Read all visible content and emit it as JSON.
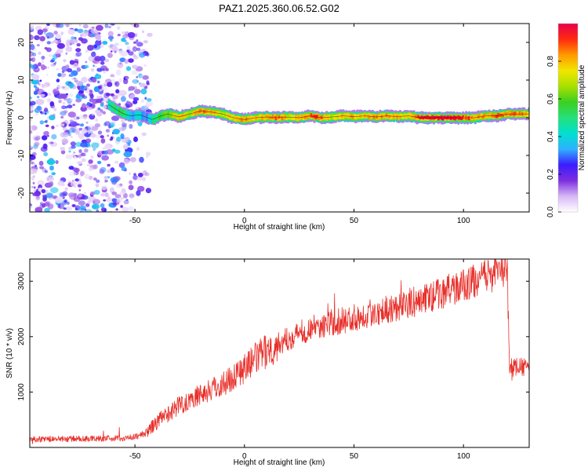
{
  "title": "PAZ1.2025.360.06.52.G02",
  "colors": {
    "line": "#e8302a",
    "ridge_dark": "#d9342b",
    "frame": "#000000",
    "background": "#ffffff"
  },
  "chart_data": [
    {
      "type": "heatmap",
      "name": "spectrogram",
      "xlabel": "Height of straight line (km)",
      "ylabel": "Frequency (Hz)",
      "xlim": [
        -98,
        130
      ],
      "ylim": [
        -25,
        25
      ],
      "xticks": [
        -50,
        0,
        50,
        100
      ],
      "yticks": [
        -20,
        -10,
        0,
        10,
        20
      ],
      "colorbar": {
        "label": "Normalized spectral amplitude",
        "range": [
          0.0,
          1.0
        ],
        "ticks": [
          0.0,
          0.2,
          0.4,
          0.6,
          0.8
        ],
        "tick_labels": [
          "0.0",
          "0.2",
          "0.4",
          "0.6",
          "0.8"
        ],
        "colormap": [
          "#ffffff",
          "#d7b8f5",
          "#7d2ee0",
          "#3b1cff",
          "#2fb0ff",
          "#00e0d0",
          "#26e07a",
          "#3cd020",
          "#a8e000",
          "#f2e600",
          "#ff9a00",
          "#ff2a10",
          "#e8004a"
        ]
      },
      "noise_region_x": [
        -98,
        -43
      ],
      "ridge": {
        "x_km": [
          -62,
          -58,
          -55,
          -52,
          -48,
          -45,
          -42,
          -38,
          -35,
          -30,
          -25,
          -20,
          -15,
          -10,
          -5,
          0,
          5,
          10,
          15,
          20,
          25,
          30,
          35,
          40,
          45,
          50,
          55,
          60,
          65,
          70,
          75,
          80,
          85,
          90,
          95,
          100,
          105,
          110,
          115,
          120,
          125,
          130
        ],
        "freq_hz": [
          3.5,
          2.0,
          1.0,
          0.5,
          0.8,
          0.2,
          -0.5,
          0.5,
          1.0,
          0.2,
          1.0,
          1.8,
          1.5,
          1.0,
          0.0,
          -0.5,
          0.0,
          0.2,
          0.0,
          0.2,
          0.0,
          0.5,
          0.0,
          0.2,
          0.5,
          0.3,
          0.5,
          0.2,
          0.5,
          0.3,
          0.5,
          0.0,
          0.0,
          0.0,
          0.0,
          0.0,
          0.0,
          0.5,
          0.5,
          1.0,
          1.0,
          1.0
        ],
        "amplitude": [
          0.45,
          0.5,
          0.55,
          0.35,
          0.4,
          0.3,
          0.45,
          0.55,
          0.6,
          0.8,
          0.7,
          0.85,
          0.8,
          0.7,
          0.75,
          0.85,
          0.75,
          0.8,
          0.85,
          0.75,
          0.8,
          0.85,
          0.9,
          0.7,
          0.8,
          0.8,
          0.75,
          0.85,
          0.8,
          0.8,
          0.75,
          0.95,
          1.0,
          1.0,
          1.0,
          0.9,
          0.85,
          0.8,
          0.9,
          0.85,
          0.85,
          0.8
        ]
      }
    },
    {
      "type": "line",
      "name": "snr",
      "xlabel": "Height of straight line (km)",
      "ylabel": "SNR (10 * v/v)",
      "xlim": [
        -98,
        130
      ],
      "ylim": [
        0,
        3400
      ],
      "xticks": [
        -50,
        0,
        50,
        100
      ],
      "yticks": [
        1000,
        2000,
        3000
      ],
      "series": [
        {
          "name": "SNR",
          "x": [
            -98,
            -90,
            -80,
            -70,
            -60,
            -55,
            -50,
            -45,
            -42,
            -40,
            -38,
            -35,
            -32,
            -30,
            -25,
            -20,
            -15,
            -10,
            -5,
            0,
            5,
            10,
            15,
            20,
            25,
            30,
            35,
            40,
            45,
            50,
            55,
            60,
            65,
            70,
            75,
            80,
            85,
            90,
            95,
            100,
            105,
            110,
            115,
            119,
            120,
            121,
            125,
            130
          ],
          "y": [
            150,
            150,
            155,
            160,
            165,
            170,
            190,
            260,
            380,
            450,
            520,
            600,
            700,
            760,
            860,
            960,
            1050,
            1150,
            1280,
            1430,
            1600,
            1740,
            1860,
            1960,
            2060,
            2140,
            2200,
            2240,
            2290,
            2340,
            2400,
            2450,
            2500,
            2550,
            2600,
            2650,
            2720,
            2790,
            2860,
            2920,
            3000,
            3080,
            3150,
            3200,
            3150,
            1450,
            1450,
            1450
          ]
        }
      ]
    }
  ]
}
